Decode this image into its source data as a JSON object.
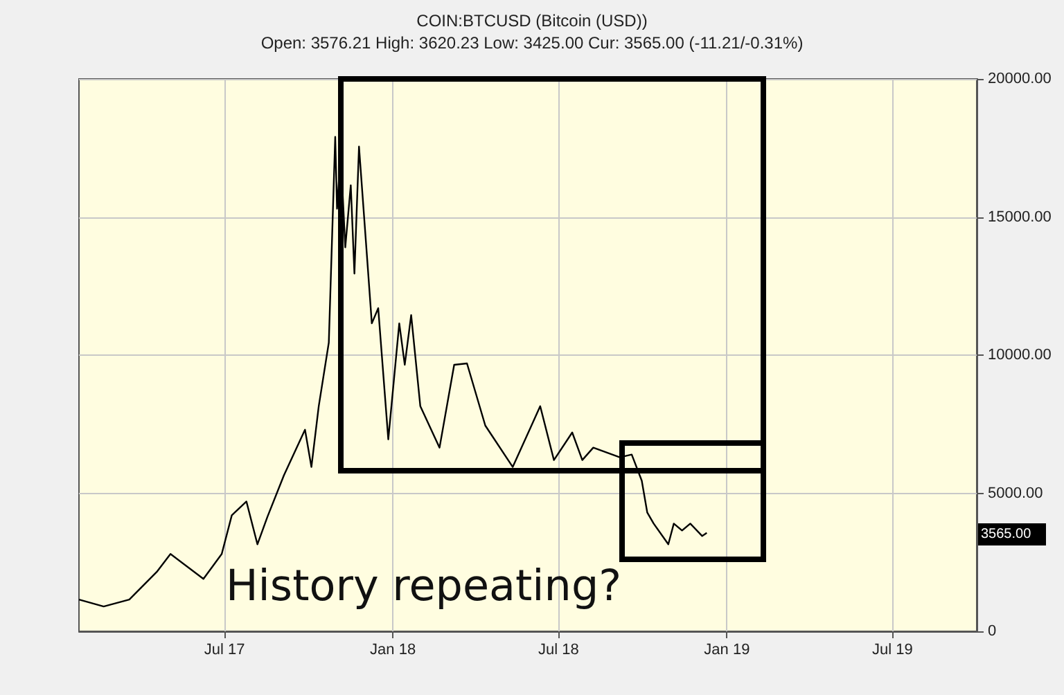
{
  "chart_data": {
    "type": "line",
    "title": "COIN:BTCUSD (Bitcoin (USD))",
    "subtitle": "Open: 3576.21 High: 3620.23 Low: 3425.00 Cur: 3565.00 (-11.21/-0.31%)",
    "x": [
      "2017-01-23",
      "2017-02-19",
      "2017-03-19",
      "2017-04-18",
      "2017-05-03",
      "2017-06-08",
      "2017-06-28",
      "2017-07-09",
      "2017-07-25",
      "2017-08-06",
      "2017-08-17",
      "2017-09-04",
      "2017-09-27",
      "2017-10-04",
      "2017-10-12",
      "2017-10-23",
      "2017-10-30",
      "2017-11-01",
      "2017-11-05",
      "2017-11-10",
      "2017-11-16",
      "2017-11-20",
      "2017-11-25",
      "2017-12-04",
      "2017-12-09",
      "2017-12-16",
      "2017-12-27",
      "2018-01-08",
      "2018-01-14",
      "2018-01-21",
      "2018-01-31",
      "2018-02-21",
      "2018-03-09",
      "2018-03-23",
      "2018-04-12",
      "2018-05-12",
      "2018-06-11",
      "2018-06-26",
      "2018-07-16",
      "2018-07-27",
      "2018-08-08",
      "2018-09-06",
      "2018-09-19",
      "2018-09-30",
      "2018-10-06",
      "2018-10-13",
      "2018-10-29",
      "2018-11-04",
      "2018-11-13",
      "2018-11-22",
      "2018-12-05",
      "2018-12-10"
    ],
    "values": [
      1150,
      900,
      1150,
      2150,
      2800,
      1900,
      2800,
      4200,
      4700,
      3150,
      4150,
      5650,
      7300,
      5950,
      8150,
      10450,
      17900,
      15300,
      17300,
      13900,
      16150,
      12950,
      17550,
      13450,
      11150,
      11700,
      6950,
      11150,
      9650,
      11450,
      8150,
      6650,
      9650,
      9700,
      7450,
      5950,
      8150,
      6200,
      7200,
      6200,
      6650,
      6300,
      6400,
      5450,
      4300,
      3900,
      3150,
      3900,
      3650,
      3900,
      3450,
      3565
    ],
    "color": "#000000",
    "xlim": [
      "2017-01-23",
      "2019-10-01"
    ],
    "xticks": [
      {
        "value": "2017-07-01",
        "label": "Jul 17"
      },
      {
        "value": "2018-01-01",
        "label": "Jan 18"
      },
      {
        "value": "2018-07-01",
        "label": "Jul 18"
      },
      {
        "value": "2019-01-01",
        "label": "Jan 19"
      },
      {
        "value": "2019-07-01",
        "label": "Jul 19"
      }
    ],
    "ylim": [
      0,
      20000
    ],
    "yticks": [
      {
        "value": 0,
        "label": "0"
      },
      {
        "value": 5000,
        "label": "5000.00"
      },
      {
        "value": 10000,
        "label": "10000.00"
      },
      {
        "value": 15000,
        "label": "15000.00"
      },
      {
        "value": 20000,
        "label": "20000.00"
      }
    ],
    "grid": true,
    "marker": "none",
    "line_style": "solid",
    "annotations": [
      "History repeating?",
      "3565.00"
    ]
  }
}
